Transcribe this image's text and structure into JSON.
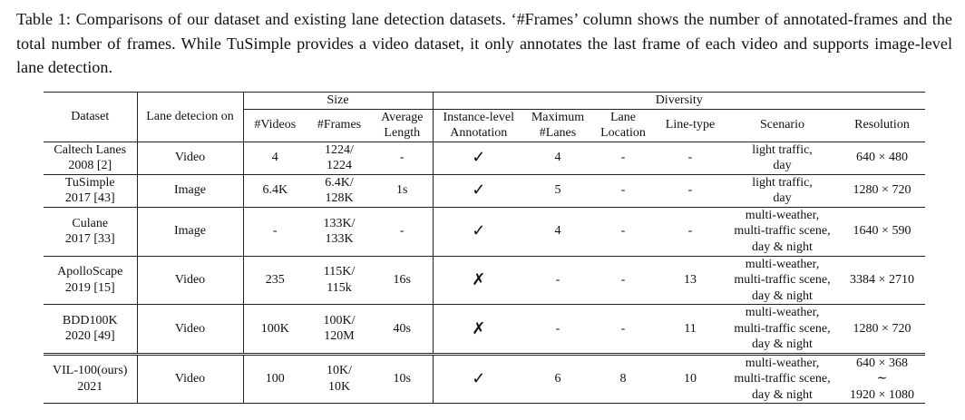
{
  "caption": "Table 1: Comparisons of our dataset and existing lane detection datasets. ‘#Frames’ column shows the number of annotated-frames and the total number of frames. While TuSimple provides a video dataset, it only annotates the last frame of each video and supports image-level lane detection.",
  "headers": {
    "dataset": "Dataset",
    "lane_detection_on": "Lane detecion on",
    "size": "Size",
    "diversity": "Diversity",
    "videos": "#Videos",
    "frames": "#Frames",
    "average_length": "Average\nLength",
    "instance_level": "Instance-level\nAnnotation",
    "max_lanes": "Maximum\n#Lanes",
    "lane_location": "Lane\nLocation",
    "line_type": "Line-type",
    "scenario": "Scenario",
    "resolution": "Resolution"
  },
  "rows": [
    {
      "dataset": "Caltech Lanes\n2008 [2]",
      "on": "Video",
      "videos": "4",
      "frames": "1224/\n1224",
      "avg": "-",
      "instance": "✓",
      "max": "4",
      "loc": "-",
      "type": "-",
      "scenario": "light traffic,\nday",
      "res": "640 × 480"
    },
    {
      "dataset": "TuSimple\n2017 [43]",
      "on": "Image",
      "videos": "6.4K",
      "frames": "6.4K/\n128K",
      "avg": "1s",
      "instance": "✓",
      "max": "5",
      "loc": "-",
      "type": "-",
      "scenario": "light traffic,\nday",
      "res": "1280 × 720"
    },
    {
      "dataset": "Culane\n2017 [33]",
      "on": "Image",
      "videos": "-",
      "frames": "133K/\n133K",
      "avg": "-",
      "instance": "✓",
      "max": "4",
      "loc": "-",
      "type": "-",
      "scenario": "multi-weather,\nmulti-traffic scene,\nday & night",
      "res": "1640 × 590"
    },
    {
      "dataset": "ApolloScape\n2019 [15]",
      "on": "Video",
      "videos": "235",
      "frames": "115K/\n115k",
      "avg": "16s",
      "instance": "✗",
      "max": "-",
      "loc": "-",
      "type": "13",
      "scenario": "multi-weather,\nmulti-traffic scene,\nday & night",
      "res": "3384 × 2710"
    },
    {
      "dataset": "BDD100K\n2020 [49]",
      "on": "Video",
      "videos": "100K",
      "frames": "100K/\n120M",
      "avg": "40s",
      "instance": "✗",
      "max": "-",
      "loc": "-",
      "type": "11",
      "scenario": "multi-weather,\nmulti-traffic scene,\nday & night",
      "res": "1280 × 720"
    },
    {
      "dataset": "VIL-100(ours)\n2021",
      "on": "Video",
      "videos": "100",
      "frames": "10K/\n10K",
      "avg": "10s",
      "instance": "✓",
      "max": "6",
      "loc": "8",
      "type": "10",
      "scenario": "multi-weather,\nmulti-traffic scene,\nday & night",
      "res": "640 × 368\n∼\n1920 × 1080"
    }
  ]
}
